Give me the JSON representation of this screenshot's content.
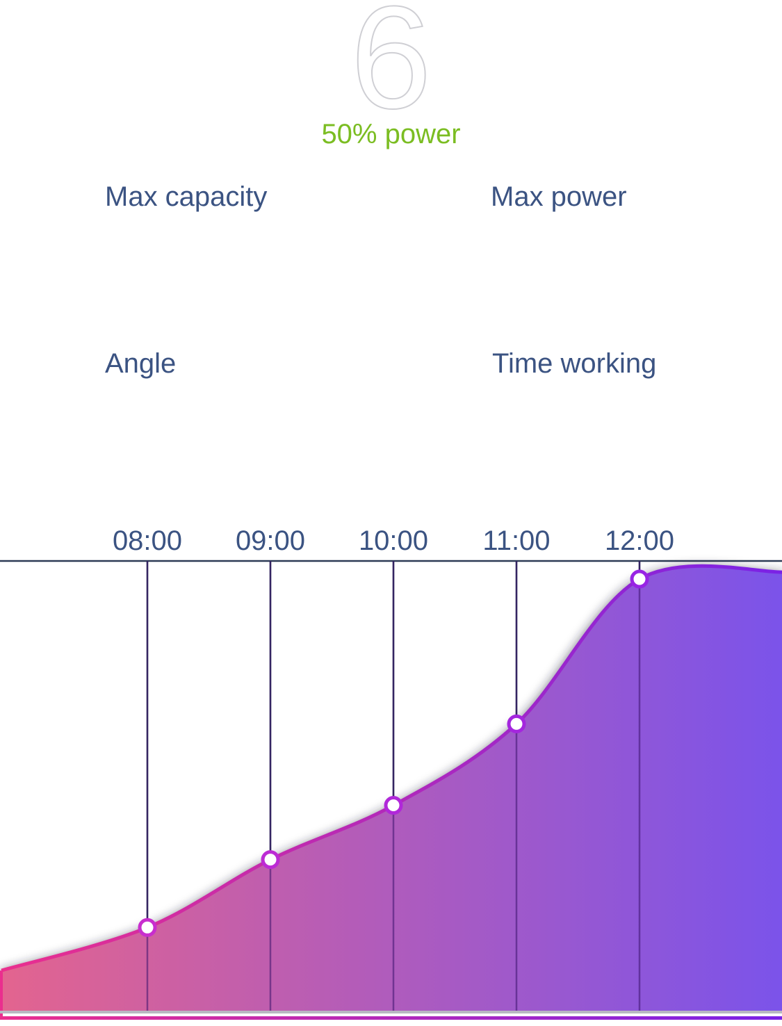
{
  "header": {
    "value": "6",
    "power_text": "50% power"
  },
  "stats": {
    "max_capacity_label": "Max capacity",
    "max_power_label": "Max power",
    "angle_label": "Angle",
    "time_working_label": "Time working"
  },
  "colors": {
    "power_green": "#7bbd22",
    "label_blue": "#3b5382",
    "gradient_start": "#e3648f",
    "gradient_end": "#7b53ea",
    "line_start": "#ea2f8e",
    "line_end": "#7a22e6"
  },
  "chart_data": {
    "type": "area",
    "categories": [
      "08:00",
      "09:00",
      "10:00",
      "11:00",
      "12:00"
    ],
    "values": [
      0.19,
      0.34,
      0.46,
      0.64,
      0.96
    ],
    "x_tick_labels": [
      "08:00",
      "09:00",
      "10:00",
      "11:00",
      "12:00"
    ],
    "title": "",
    "xlabel": "",
    "ylabel": "",
    "grid": "vertical",
    "legend": "none"
  }
}
